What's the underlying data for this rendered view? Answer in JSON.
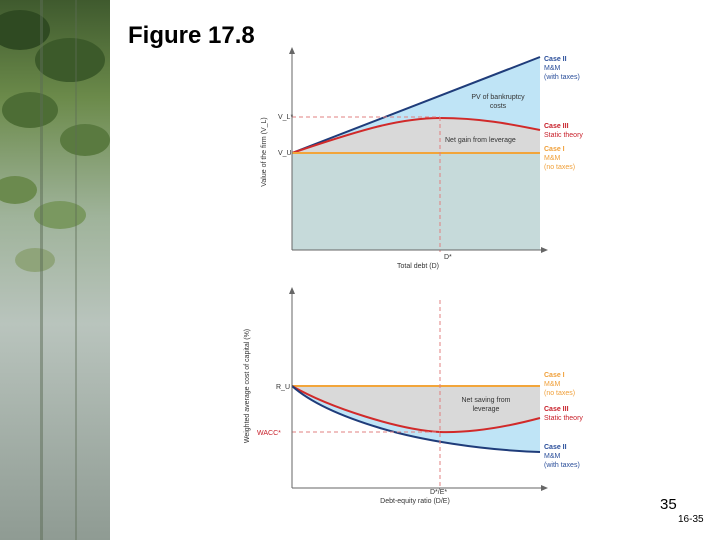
{
  "slide": {
    "title": "Figure 17.8",
    "number": "35",
    "code": "16-35"
  },
  "top_chart": {
    "ylabel": "Value of the firm (V_L)",
    "xlabel": "Total debt (D)",
    "vl_star": "V_L*",
    "vu": "V_U",
    "d_star": "D*",
    "pv_costs": [
      "PV of bankruptcy",
      "costs"
    ],
    "net_gain": "Net gain from leverage",
    "case2": [
      "Case II",
      "M&M",
      "(with taxes)"
    ],
    "case3": [
      "Case III",
      "Static theory"
    ],
    "case1": [
      "Case I",
      "M&M",
      "(no taxes)"
    ]
  },
  "bottom_chart": {
    "ylabel": "Weighted average cost of capital (%)",
    "xlabel": "Debt-equity ratio (D/E)",
    "ru": "R_U",
    "wacc_star": "WACC*",
    "de_star": "D*/E*",
    "net_saving": [
      "Net saving from",
      "leverage"
    ],
    "case1": [
      "Case I",
      "M&M",
      "(no taxes)"
    ],
    "case3": [
      "Case III",
      "Static theory"
    ],
    "case2": [
      "Case II",
      "M&M",
      "(with taxes)"
    ]
  },
  "colors": {
    "blue_fill": "#bfe4f6",
    "grey_fill": "#d9d9d9",
    "teal_fill": "#c6dada",
    "blue_line": "#1f3c7a",
    "red_line": "#d12a2a",
    "orange_line": "#f2a53a",
    "red_text": "#c8202a",
    "orange_text": "#f0a03a",
    "blue_text": "#2a4e9a",
    "dash": "#e08080"
  }
}
